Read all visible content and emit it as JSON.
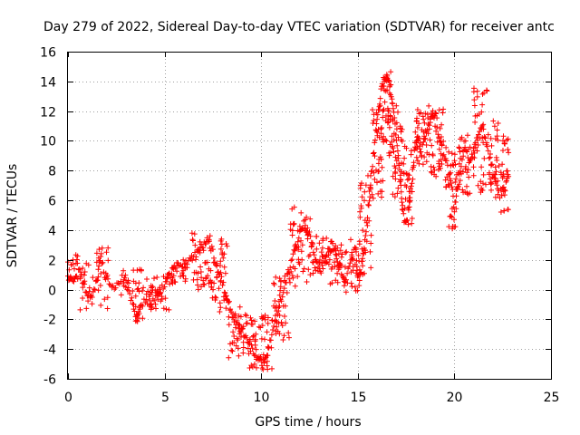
{
  "chart_data": {
    "type": "scatter",
    "title": "Day 279 of 2022, Sidereal Day-to-day VTEC variation (SDTVAR) for receiver antc",
    "xlabel": "GPS time / hours",
    "ylabel": "SDTVAR / TECUs",
    "xlim": [
      0,
      25
    ],
    "ylim": [
      -6,
      16
    ],
    "xticks": [
      0,
      5,
      10,
      15,
      20,
      25
    ],
    "yticks": [
      -6,
      -4,
      -2,
      0,
      2,
      4,
      6,
      8,
      10,
      12,
      14,
      16
    ],
    "grid": true,
    "marker": "+",
    "color": "#ff0000",
    "series": [
      {
        "name": "SDTVAR",
        "trace": [
          [
            0.0,
            0.8
          ],
          [
            0.3,
            0.5
          ],
          [
            0.6,
            1.2
          ],
          [
            0.9,
            0.0
          ],
          [
            1.2,
            -0.6
          ],
          [
            1.5,
            0.7
          ],
          [
            1.7,
            2.0
          ],
          [
            2.0,
            0.6
          ],
          [
            2.4,
            0.2
          ],
          [
            2.8,
            0.9
          ],
          [
            3.2,
            -0.2
          ],
          [
            3.5,
            -1.8
          ],
          [
            3.8,
            -1.0
          ],
          [
            4.2,
            -0.3
          ],
          [
            4.6,
            -0.6
          ],
          [
            5.0,
            0.4
          ],
          [
            5.3,
            1.1
          ],
          [
            5.7,
            1.6
          ],
          [
            6.1,
            1.8
          ],
          [
            6.5,
            2.2
          ],
          [
            6.9,
            2.8
          ],
          [
            7.2,
            3.4
          ],
          [
            7.5,
            2.6
          ],
          [
            7.8,
            1.2
          ],
          [
            8.1,
            0.0
          ],
          [
            8.4,
            -1.3
          ],
          [
            8.7,
            -2.2
          ],
          [
            9.0,
            -2.8
          ],
          [
            9.3,
            -3.6
          ],
          [
            9.6,
            -4.2
          ],
          [
            9.9,
            -4.6
          ],
          [
            10.1,
            -5.2
          ],
          [
            10.4,
            -3.6
          ],
          [
            10.7,
            -2.2
          ],
          [
            11.0,
            -0.8
          ],
          [
            11.3,
            0.6
          ],
          [
            11.6,
            2.0
          ],
          [
            11.9,
            3.3
          ],
          [
            12.2,
            4.4
          ],
          [
            12.5,
            3.6
          ],
          [
            12.8,
            2.1
          ],
          [
            13.1,
            1.3
          ],
          [
            13.4,
            2.4
          ],
          [
            13.7,
            3.2
          ],
          [
            14.0,
            1.8
          ],
          [
            14.3,
            0.6
          ],
          [
            14.6,
            1.6
          ],
          [
            14.9,
            2.8
          ],
          [
            15.0,
            0.6
          ],
          [
            15.2,
            1.6
          ],
          [
            15.4,
            3.6
          ],
          [
            15.6,
            6.4
          ],
          [
            15.8,
            9.0
          ],
          [
            16.0,
            11.4
          ],
          [
            16.2,
            13.2
          ],
          [
            16.4,
            14.4
          ],
          [
            16.6,
            14.1
          ],
          [
            16.8,
            12.6
          ],
          [
            17.0,
            10.2
          ],
          [
            17.2,
            7.6
          ],
          [
            17.3,
            5.2
          ],
          [
            17.5,
            4.4
          ],
          [
            17.7,
            6.0
          ],
          [
            17.9,
            8.8
          ],
          [
            18.1,
            10.6
          ],
          [
            18.3,
            9.2
          ],
          [
            18.6,
            10.8
          ],
          [
            18.9,
            11.6
          ],
          [
            19.2,
            10.2
          ],
          [
            19.5,
            8.8
          ],
          [
            19.8,
            7.6
          ],
          [
            20.0,
            5.4
          ],
          [
            20.2,
            7.0
          ],
          [
            20.5,
            9.8
          ],
          [
            20.8,
            8.6
          ],
          [
            21.1,
            9.8
          ],
          [
            21.4,
            11.0
          ],
          [
            21.7,
            9.6
          ],
          [
            22.0,
            8.0
          ],
          [
            22.3,
            6.4
          ],
          [
            22.6,
            6.8
          ],
          [
            22.8,
            7.6
          ]
        ],
        "bands": [
          [
            0.0,
            0.5,
            0.6,
            2.4,
            14
          ],
          [
            0.6,
            1.3,
            -1.4,
            2.0,
            18
          ],
          [
            1.4,
            2.1,
            -1.4,
            2.9,
            20
          ],
          [
            2.7,
            3.2,
            -0.5,
            1.4,
            10
          ],
          [
            3.3,
            3.9,
            -2.3,
            1.6,
            26
          ],
          [
            3.9,
            4.7,
            -1.4,
            0.9,
            24
          ],
          [
            4.7,
            5.3,
            -1.4,
            1.2,
            18
          ],
          [
            5.3,
            6.3,
            0.4,
            1.9,
            24
          ],
          [
            6.3,
            7.4,
            0.0,
            3.9,
            40
          ],
          [
            7.4,
            8.3,
            -1.6,
            3.6,
            40
          ],
          [
            8.3,
            9.4,
            -4.6,
            -1.1,
            40
          ],
          [
            9.4,
            10.6,
            -5.4,
            -1.7,
            46
          ],
          [
            10.6,
            11.5,
            -3.4,
            1.2,
            40
          ],
          [
            11.5,
            12.6,
            0.2,
            5.6,
            46
          ],
          [
            12.6,
            13.4,
            1.1,
            3.9,
            30
          ],
          [
            13.4,
            14.2,
            0.3,
            3.2,
            30
          ],
          [
            14.2,
            15.1,
            -0.5,
            3.5,
            30
          ],
          [
            15.1,
            15.7,
            1.0,
            7.8,
            36
          ],
          [
            15.7,
            16.3,
            6.0,
            12.6,
            40
          ],
          [
            16.3,
            16.8,
            9.0,
            14.7,
            40
          ],
          [
            16.8,
            17.3,
            6.2,
            12.6,
            34
          ],
          [
            17.3,
            17.9,
            4.0,
            9.8,
            30
          ],
          [
            17.9,
            18.7,
            8.4,
            12.6,
            40
          ],
          [
            18.7,
            19.5,
            7.6,
            12.4,
            40
          ],
          [
            19.5,
            20.2,
            4.1,
            9.8,
            34
          ],
          [
            20.2,
            21.0,
            6.0,
            10.4,
            34
          ],
          [
            21.0,
            21.7,
            6.5,
            13.6,
            40
          ],
          [
            21.7,
            22.3,
            6.2,
            11.4,
            30
          ],
          [
            22.3,
            22.8,
            5.2,
            10.4,
            26
          ]
        ]
      }
    ]
  }
}
